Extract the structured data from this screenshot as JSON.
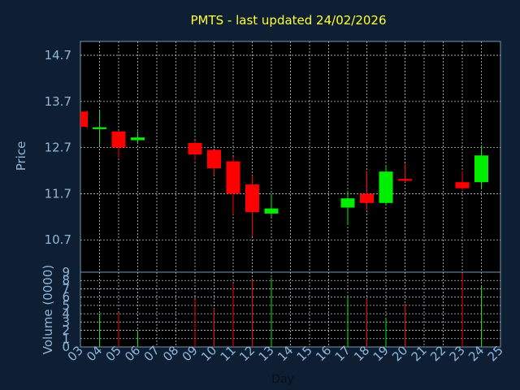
{
  "chart_data": {
    "type": "candlestick",
    "title": "PMTS - last updated 24/02/2026",
    "price_axis": {
      "label": "Price",
      "ylim": [
        10.0,
        15.0
      ],
      "ticks": [
        10.7,
        11.7,
        12.7,
        13.7,
        14.7
      ],
      "tick_labels": [
        "10.7",
        "11.7",
        "12.7",
        "13.7",
        "14.7"
      ]
    },
    "volume_axis": {
      "label": "Volume (0000)",
      "ylim": [
        0,
        9
      ],
      "ticks": [
        0,
        1,
        2,
        3,
        4,
        5,
        6,
        7,
        8,
        9
      ],
      "tick_labels": [
        "0",
        "1",
        "2",
        "3",
        "4",
        "5",
        "6",
        "7",
        "8",
        "9"
      ]
    },
    "x_axis": {
      "label": "Day",
      "tick_labels": [
        "03",
        "04",
        "05",
        "06",
        "07",
        "08",
        "09",
        "10",
        "11",
        "12",
        "13",
        "14",
        "15",
        "16",
        "17",
        "18",
        "19",
        "20",
        "21",
        "22",
        "23",
        "24",
        "25"
      ]
    },
    "grid": true,
    "up_color": "#00ee00",
    "down_color": "#ff0000",
    "candles": [
      {
        "day": "03",
        "open": 13.48,
        "close": 13.15,
        "high": 13.5,
        "low": 13.12,
        "volume": 0
      },
      {
        "day": "04",
        "open": 13.1,
        "close": 13.14,
        "high": 13.5,
        "low": 12.75,
        "volume": 4.0
      },
      {
        "day": "05",
        "open": 13.05,
        "close": 12.7,
        "high": 13.05,
        "low": 12.48,
        "volume": 4.1
      },
      {
        "day": "06",
        "open": 12.86,
        "close": 12.92,
        "high": 13.05,
        "low": 12.8,
        "volume": 2.0
      },
      {
        "day": "09",
        "open": 12.8,
        "close": 12.55,
        "high": 12.85,
        "low": 12.42,
        "volume": 5.7
      },
      {
        "day": "10",
        "open": 12.65,
        "close": 12.25,
        "high": 12.65,
        "low": 12.1,
        "volume": 4.6
      },
      {
        "day": "11",
        "open": 12.4,
        "close": 11.7,
        "high": 12.5,
        "low": 11.25,
        "volume": 7.6
      },
      {
        "day": "12",
        "open": 11.9,
        "close": 11.3,
        "high": 12.1,
        "low": 10.78,
        "volume": 8.1
      },
      {
        "day": "13",
        "open": 11.27,
        "close": 11.38,
        "high": 11.7,
        "low": 11.2,
        "volume": 8.3
      },
      {
        "day": "17",
        "open": 11.4,
        "close": 11.6,
        "high": 11.76,
        "low": 11.02,
        "volume": 6.0
      },
      {
        "day": "18",
        "open": 11.7,
        "close": 11.5,
        "high": 12.2,
        "low": 11.35,
        "volume": 5.8
      },
      {
        "day": "19",
        "open": 11.5,
        "close": 12.18,
        "high": 12.3,
        "low": 11.45,
        "volume": 3.4
      },
      {
        "day": "20",
        "open": 12.02,
        "close": 11.98,
        "high": 12.35,
        "low": 11.95,
        "volume": 5.2
      },
      {
        "day": "23",
        "open": 11.95,
        "close": 11.82,
        "high": 12.18,
        "low": 11.78,
        "volume": 8.9
      },
      {
        "day": "24",
        "open": 11.95,
        "close": 12.53,
        "high": 12.75,
        "low": 11.82,
        "volume": 7.3
      }
    ]
  }
}
